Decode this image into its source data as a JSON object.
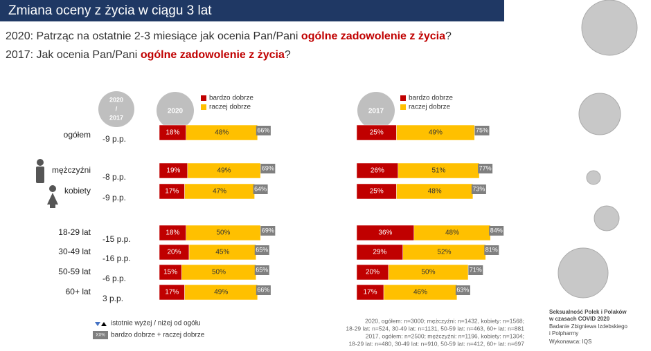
{
  "slide": {
    "title": "Zmiana oceny z życia w ciągu 3 lat",
    "question_2020": [
      "2020: Patrząc na ostatnie 2-3 miesiące jak ocenia Pan/Pani ",
      "ogólne zadowolenie z życia",
      "?"
    ],
    "question_2017": [
      "2017: Jak ocenia Pan/Pani ",
      "ogólne zadowolenie z życia",
      "?"
    ],
    "diff_header": [
      "2020",
      "/",
      "2017"
    ],
    "differences": [
      "-9 p.p.",
      "-8 p.p.",
      "-9 p.p.",
      "-15 p.p.",
      "-16 p.p.",
      "-6 p.p.",
      "3 p.p."
    ],
    "difference_colors": [
      "#c00000",
      "#c00000",
      "#c00000",
      "#c00000",
      "#c00000",
      "#c00000",
      "#70ad47"
    ],
    "legend_significance": "istotnie wyżej / niżej od ogółu",
    "legend_total_box": "XX%",
    "legend_total": "bardzo dobrze + raczej dobrze",
    "notes": [
      "2020, ogółem: n=3000; mężczyźni: n=1432, kobiety: n=1568;",
      "18-29 lat: n=524, 30-49 lat: n=1131, 50-59 lat: n=463, 60+ lat: n=881",
      "2017, ogółem: n=2500; mężczyźni: n=1196, kobiety: n=1304;",
      "18-29 lat: n=480, 30-49 lat: n=910, 50-59 lat: n=412, 60+ lat: n=697"
    ],
    "source_bold": [
      "Seksualność Polek i Polaków",
      "w czasach COVID 2020"
    ],
    "source": [
      "Badanie Zbigniewa Izdebskiego",
      "i Polpharmy",
      "Wykonawca: IQS"
    ]
  },
  "chart_data": [
    {
      "type": "stacked-bar",
      "title": "2020",
      "categories": [
        "ogółem",
        "mężczyźni",
        "kobiety",
        "18-29 lat",
        "30-49 lat",
        "50-59 lat",
        "60+ lat"
      ],
      "series": [
        {
          "name": "bardzo dobrze",
          "color": "#c00000",
          "values": [
            18,
            19,
            17,
            18,
            20,
            15,
            17
          ],
          "value_labels": [
            "18%",
            "19%",
            "17%",
            "18%",
            "20%",
            "15%",
            "17%"
          ]
        },
        {
          "name": "raczej dobrze",
          "color": "#ffc000",
          "values": [
            48,
            49,
            47,
            50,
            45,
            50,
            49
          ],
          "value_labels": [
            "48%",
            "49%",
            "47%",
            "50%",
            "45%",
            "50%",
            "49%"
          ]
        }
      ],
      "totals": {
        "color": "#7f7f7f",
        "values": [
          66,
          69,
          64,
          69,
          65,
          65,
          66
        ],
        "value_labels": [
          "66%",
          "69%",
          "64%",
          "69%",
          "65%",
          "65%",
          "66%"
        ]
      }
    },
    {
      "type": "stacked-bar",
      "title": "2017",
      "categories": [
        "ogółem",
        "mężczyźni",
        "kobiety",
        "18-29 lat",
        "30-49 lat",
        "50-59 lat",
        "60+ lat"
      ],
      "series": [
        {
          "name": "bardzo dobrze",
          "color": "#c00000",
          "values": [
            25,
            26,
            25,
            36,
            29,
            20,
            17
          ],
          "value_labels": [
            "25%",
            "26%",
            "25%",
            "36%",
            "29%",
            "20%",
            "17%"
          ]
        },
        {
          "name": "raczej dobrze",
          "color": "#ffc000",
          "values": [
            49,
            51,
            48,
            48,
            52,
            50,
            46
          ],
          "value_labels": [
            "49%",
            "51%",
            "48%",
            "48%",
            "52%",
            "50%",
            "46%"
          ]
        }
      ],
      "totals": {
        "color": "#7f7f7f",
        "values": [
          75,
          77,
          73,
          84,
          81,
          71,
          63
        ],
        "value_labels": [
          "75%",
          "77%",
          "73%",
          "84%",
          "81%",
          "71%",
          "63%"
        ]
      }
    }
  ]
}
